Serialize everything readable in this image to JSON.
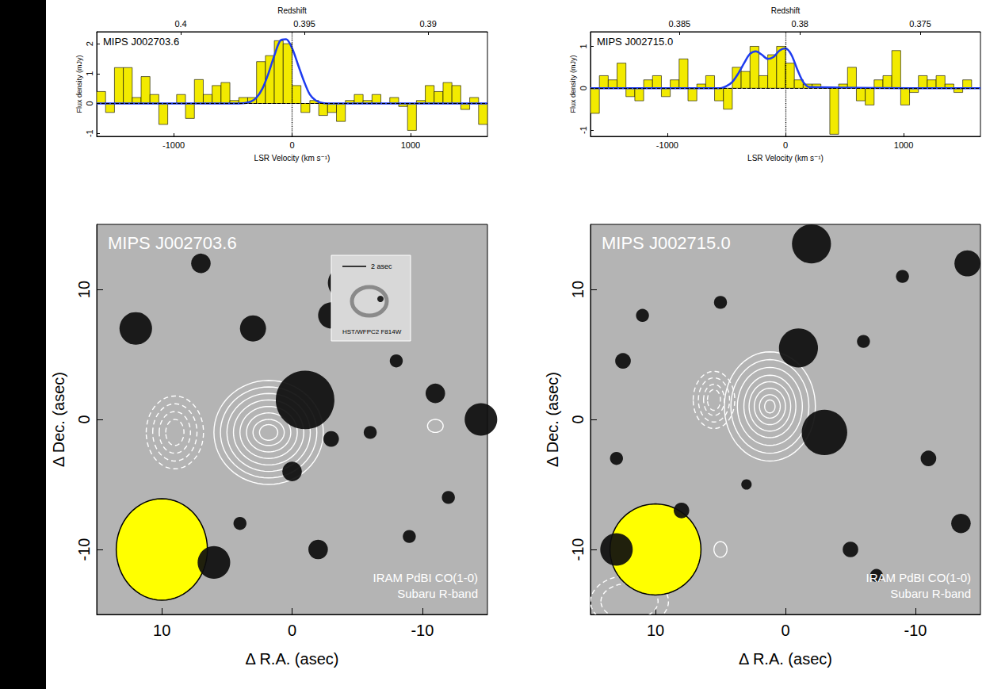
{
  "chart_data": [
    {
      "type": "histogram",
      "title": "MIPS J002703.6",
      "x_label": "LSR Velocity (km s⁻¹)",
      "y_label": "Flux density (mJy)",
      "x2_label": "Redshift",
      "bins": [
        -1650,
        -1575,
        -1500,
        -1425,
        -1350,
        -1275,
        -1200,
        -1125,
        -1050,
        -975,
        -900,
        -825,
        -750,
        -675,
        -600,
        -525,
        -450,
        -375,
        -300,
        -225,
        -150,
        -75,
        0,
        75,
        150,
        225,
        300,
        375,
        450,
        525,
        600,
        675,
        750,
        825,
        900,
        975,
        1050,
        1125,
        1200,
        1275,
        1350,
        1425,
        1500,
        1575,
        1650
      ],
      "values": [
        0.4,
        -0.3,
        1.2,
        1.2,
        0.2,
        0.9,
        0.3,
        -0.7,
        0.0,
        0.3,
        -0.5,
        0.8,
        0.3,
        0.6,
        0.7,
        0.1,
        0.2,
        0.2,
        1.4,
        1.6,
        2.1,
        2.0,
        0.6,
        -0.3,
        0.1,
        -0.4,
        -0.3,
        -0.6,
        0.1,
        0.3,
        0.1,
        0.3,
        0.0,
        0.2,
        -0.1,
        -0.9,
        0.1,
        0.6,
        0.4,
        0.7,
        0.6,
        -0.2,
        0.2,
        -0.7
      ],
      "color": "#f2ea00",
      "fit": {
        "color": "#1e3cf0",
        "x": [
          -1650,
          -450,
          -350,
          -300,
          -250,
          -200,
          -150,
          -100,
          -50,
          0,
          50,
          100,
          150,
          200,
          250,
          300,
          1650
        ],
        "values": [
          0,
          0,
          0.06,
          0.2,
          0.5,
          1.0,
          1.6,
          2.1,
          2.15,
          1.85,
          1.3,
          0.75,
          0.3,
          0.1,
          0.02,
          0,
          0
        ]
      },
      "systemic_velocity": 0,
      "baseline": 0,
      "xlim": [
        -1650,
        1650
      ],
      "xticks": [
        -1000,
        0,
        1000
      ],
      "ylim": [
        -1.1,
        2.4
      ],
      "yticks": [
        -1,
        0,
        1,
        2
      ],
      "x2lim": [
        0.4034,
        0.3876
      ],
      "x2ticks": [
        0.4,
        0.395,
        0.39
      ],
      "grid": false
    },
    {
      "type": "histogram",
      "title": "MIPS J002715.0",
      "x_label": "LSR Velocity (km s⁻¹)",
      "y_label": "Flux density (mJy)",
      "x2_label": "Redshift",
      "bins": [
        -1650,
        -1575,
        -1500,
        -1425,
        -1350,
        -1275,
        -1200,
        -1125,
        -1050,
        -975,
        -900,
        -825,
        -750,
        -675,
        -600,
        -525,
        -450,
        -375,
        -300,
        -225,
        -150,
        -75,
        0,
        75,
        150,
        225,
        300,
        375,
        450,
        525,
        600,
        675,
        750,
        825,
        900,
        975,
        1050,
        1125,
        1200,
        1275,
        1350,
        1425,
        1500,
        1575,
        1650
      ],
      "values": [
        -0.6,
        0.3,
        0.2,
        0.6,
        -0.2,
        -0.3,
        0.2,
        0.3,
        -0.2,
        0.2,
        0.7,
        -0.3,
        0.1,
        0.3,
        -0.3,
        -0.5,
        0.5,
        0.4,
        1.0,
        0.3,
        0.8,
        1.0,
        0.6,
        0.2,
        0.1,
        0.1,
        0.0,
        -1.1,
        0.1,
        0.5,
        -0.3,
        -0.4,
        0.2,
        0.3,
        0.9,
        -0.4,
        -0.1,
        0.3,
        0.2,
        0.3,
        0.1,
        -0.1,
        0.2,
        0.0
      ],
      "color": "#f2ea00",
      "fit": {
        "color": "#1e3cf0",
        "x": [
          -1650,
          -550,
          -500,
          -450,
          -400,
          -350,
          -300,
          -250,
          -200,
          -150,
          -100,
          -50,
          0,
          50,
          100,
          150,
          200,
          1650
        ],
        "values": [
          0,
          0,
          0.05,
          0.15,
          0.35,
          0.6,
          0.82,
          0.88,
          0.8,
          0.7,
          0.75,
          0.9,
          0.95,
          0.8,
          0.45,
          0.15,
          0.03,
          0
        ]
      },
      "systemic_velocity": 0,
      "baseline": 0,
      "xlim": [
        -1650,
        1650
      ],
      "xticks": [
        -1000,
        0,
        1000
      ],
      "ylim": [
        -1.15,
        1.35
      ],
      "yticks": [
        -1,
        0,
        1
      ],
      "x2lim": [
        0.3887,
        0.3725
      ],
      "x2ticks": [
        0.385,
        0.38,
        0.375
      ],
      "grid": false
    },
    {
      "type": "contour_map",
      "title": "MIPS J002703.6",
      "annotations": [
        "IRAM PdBI CO(1-0)",
        "Subaru R-band"
      ],
      "x_label": "Δ R.A. (asec)",
      "y_label": "Δ Dec. (asec)",
      "xlim": [
        15,
        -15
      ],
      "xticks": [
        10,
        0,
        -10
      ],
      "ylim": [
        -15,
        15
      ],
      "yticks": [
        -10,
        0,
        10
      ],
      "grid": false,
      "optical_sources": [
        [
          -1,
          1.5,
          4.5
        ],
        [
          12,
          7,
          2.5
        ],
        [
          3,
          7,
          2
        ],
        [
          -3,
          8,
          2
        ],
        [
          -4,
          10.5,
          2.5
        ],
        [
          -11,
          2,
          1.5
        ],
        [
          -14.5,
          0,
          2.5
        ],
        [
          -3,
          -1.5,
          1.2
        ],
        [
          -6,
          -1,
          1
        ],
        [
          0,
          -4,
          1.5
        ],
        [
          6,
          -11,
          2.5
        ],
        [
          -2,
          -10,
          1.5
        ],
        [
          4,
          -8,
          1
        ],
        [
          -8,
          4.5,
          1
        ],
        [
          -9,
          -9,
          1
        ],
        [
          7,
          12,
          1.5
        ],
        [
          -12,
          -6,
          1
        ]
      ],
      "contours": [
        {
          "line_style": "solid",
          "color": "#ffffff",
          "center": [
            1.8,
            -1
          ],
          "rx": [
            4.2,
            3.7,
            3.2,
            2.7,
            2.2,
            1.7,
            1.2,
            0.7
          ],
          "ry": [
            4.0,
            3.5,
            3.0,
            2.5,
            2.0,
            1.5,
            1.0,
            0.6
          ]
        },
        {
          "line_style": "dashed",
          "color": "#ffffff",
          "center": [
            9,
            -1
          ],
          "rx": [
            2.2,
            1.7,
            1.2,
            0.7
          ],
          "ry": [
            2.8,
            2.2,
            1.6,
            1.0
          ]
        },
        {
          "line_style": "solid",
          "color": "#ffffff",
          "center": [
            -11,
            -0.5
          ],
          "rx": [
            0.6
          ],
          "ry": [
            0.5
          ]
        }
      ],
      "beam": {
        "center": [
          10,
          -10
        ],
        "rx": 3.5,
        "ry": 3.9,
        "color": "#ffff00"
      },
      "inset": {
        "scale_bar": "2 asec",
        "caption": "HST/WFPC2 F814W"
      }
    },
    {
      "type": "contour_map",
      "title": "MIPS J002715.0",
      "annotations": [
        "IRAM PdBI CO(1-0)",
        "Subaru R-band"
      ],
      "x_label": "Δ R.A. (asec)",
      "y_label": "Δ Dec. (asec)",
      "xlim": [
        15,
        -15
      ],
      "xticks": [
        10,
        0,
        -10
      ],
      "ylim": [
        -15,
        15
      ],
      "yticks": [
        -10,
        0,
        10
      ],
      "grid": false,
      "optical_sources": [
        [
          -3,
          -1,
          3.5
        ],
        [
          -1,
          5.5,
          3
        ],
        [
          -2,
          13.5,
          3
        ],
        [
          13,
          -10,
          2.5
        ],
        [
          8,
          -7,
          1.2
        ],
        [
          13,
          -3,
          1
        ],
        [
          -6,
          6,
          1
        ],
        [
          -11,
          -3,
          1.2
        ],
        [
          -5,
          -10,
          1.2
        ],
        [
          -13.5,
          -8,
          1.5
        ],
        [
          -7,
          -12,
          1
        ],
        [
          5,
          9,
          1
        ],
        [
          11,
          8,
          1
        ],
        [
          -14,
          12,
          2
        ],
        [
          3,
          -5,
          0.8
        ],
        [
          12.5,
          4.5,
          1.2
        ],
        [
          -9,
          11,
          1
        ]
      ],
      "contours": [
        {
          "line_style": "solid",
          "color": "#ffffff",
          "center": [
            1.2,
            1
          ],
          "rx": [
            3.5,
            3.0,
            2.5,
            2.0,
            1.6,
            1.2,
            0.8,
            0.4
          ],
          "ry": [
            4.2,
            3.6,
            3.0,
            2.4,
            1.9,
            1.4,
            0.9,
            0.5
          ]
        },
        {
          "line_style": "dashed",
          "color": "#ffffff",
          "center": [
            5.5,
            1.5
          ],
          "rx": [
            1.6,
            1.2,
            0.8,
            0.5
          ],
          "ry": [
            2.2,
            1.7,
            1.2,
            0.8
          ]
        },
        {
          "line_style": "dashed",
          "color": "#ffffff",
          "center": [
            12,
            -14
          ],
          "rx": [
            3.0,
            2.2
          ],
          "ry": [
            2.0,
            1.4
          ]
        },
        {
          "line_style": "solid",
          "color": "#ffffff",
          "center": [
            5,
            -10
          ],
          "rx": [
            0.5
          ],
          "ry": [
            0.6
          ]
        }
      ],
      "beam": {
        "center": [
          10,
          -10
        ],
        "rx": 3.5,
        "ry": 3.5,
        "color": "#ffff00"
      }
    }
  ]
}
